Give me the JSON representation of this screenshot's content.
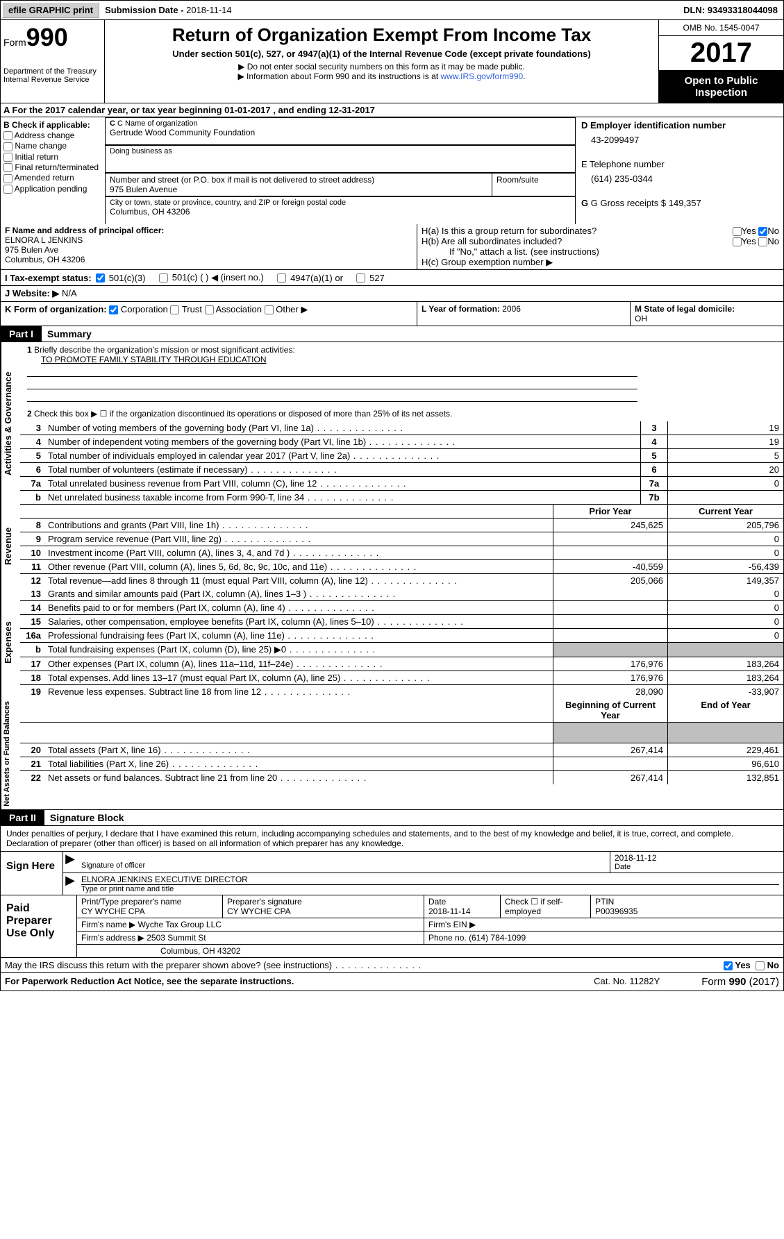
{
  "topbar": {
    "efile": "efile GRAPHIC print",
    "submission_label": "Submission Date - ",
    "submission_date": "2018-11-14",
    "dln_label": "DLN: ",
    "dln": "93493318044098"
  },
  "header": {
    "form_label": "Form",
    "form_number": "990",
    "dept": "Department of the Treasury",
    "irs": "Internal Revenue Service",
    "title": "Return of Organization Exempt From Income Tax",
    "subtitle": "Under section 501(c), 527, or 4947(a)(1) of the Internal Revenue Code (except private foundations)",
    "note1": "▶ Do not enter social security numbers on this form as it may be made public.",
    "note2_pre": "▶ Information about Form 990 and its instructions is at ",
    "note2_link": "www.IRS.gov/form990",
    "omb": "OMB No. 1545-0047",
    "year": "2017",
    "open": "Open to Public Inspection"
  },
  "section_a": "A  For the 2017 calendar year, or tax year beginning 01-01-2017    , and ending 12-31-2017",
  "section_b": {
    "check_label": "B Check if applicable:",
    "options": [
      "Address change",
      "Name change",
      "Initial return",
      "Final return/terminated",
      "Amended return",
      "Application pending"
    ],
    "name_lbl": "C Name of organization",
    "name_val": "Gertrude Wood Community Foundation",
    "dba_lbl": "Doing business as",
    "addr_lbl": "Number and street (or P.O. box if mail is not delivered to street address)",
    "room_lbl": "Room/suite",
    "addr_val": "975 Bulen Avenue",
    "city_lbl": "City or town, state or province, country, and ZIP or foreign postal code",
    "city_val": "Columbus, OH  43206",
    "ein_lbl": "D Employer identification number",
    "ein_val": "43-2099497",
    "tel_lbl": "E Telephone number",
    "tel_val": "(614) 235-0344",
    "gross_lbl": "G Gross receipts $ ",
    "gross_val": "149,357"
  },
  "section_f": {
    "lbl": "F Name and address of principal officer:",
    "name": "ELNORA L JENKINS",
    "addr1": "975 Bulen Ave",
    "addr2": "Columbus, OH  43206",
    "ha": "H(a)  Is this a group return for subordinates?",
    "hb": "H(b)  Are all subordinates included?",
    "hb_note": "If \"No,\" attach a list. (see instructions)",
    "hc": "H(c)  Group exemption number ▶",
    "yes": "Yes",
    "no": "No"
  },
  "section_i": {
    "lbl": "I  Tax-exempt status:",
    "o1": "501(c)(3)",
    "o2": "501(c) (   ) ◀ (insert no.)",
    "o3": "4947(a)(1) or",
    "o4": "527"
  },
  "section_j": {
    "lbl": "J  Website: ▶",
    "val": "N/A"
  },
  "section_k": {
    "lbl": "K Form of organization:",
    "o1": "Corporation",
    "o2": "Trust",
    "o3": "Association",
    "o4": "Other ▶",
    "l_lbl": "L Year of formation: ",
    "l_val": "2006",
    "m_lbl": "M State of legal domicile: ",
    "m_val": "OH"
  },
  "part1": {
    "tag": "Part I",
    "title": "Summary"
  },
  "summary": {
    "q1": "Briefly describe the organization's mission or most significant activities:",
    "mission": "TO PROMOTE FAMILY STABILITY THROUGH EDUCATION",
    "q2": "Check this box ▶ ☐  if the organization discontinued its operations or disposed of more than 25% of its net assets.",
    "rows_gov": [
      {
        "n": "3",
        "d": "Number of voting members of the governing body (Part VI, line 1a)",
        "c": "3",
        "v": "19"
      },
      {
        "n": "4",
        "d": "Number of independent voting members of the governing body (Part VI, line 1b)",
        "c": "4",
        "v": "19"
      },
      {
        "n": "5",
        "d": "Total number of individuals employed in calendar year 2017 (Part V, line 2a)",
        "c": "5",
        "v": "5"
      },
      {
        "n": "6",
        "d": "Total number of volunteers (estimate if necessary)",
        "c": "6",
        "v": "20"
      },
      {
        "n": "7a",
        "d": "Total unrelated business revenue from Part VIII, column (C), line 12",
        "c": "7a",
        "v": "0"
      },
      {
        "n": "b",
        "d": "Net unrelated business taxable income from Form 990-T, line 34",
        "c": "7b",
        "v": ""
      }
    ],
    "prior_hdr": "Prior Year",
    "curr_hdr": "Current Year",
    "rows_rev": [
      {
        "n": "8",
        "d": "Contributions and grants (Part VIII, line 1h)",
        "p": "245,625",
        "c": "205,796"
      },
      {
        "n": "9",
        "d": "Program service revenue (Part VIII, line 2g)",
        "p": "",
        "c": "0"
      },
      {
        "n": "10",
        "d": "Investment income (Part VIII, column (A), lines 3, 4, and 7d )",
        "p": "",
        "c": "0"
      },
      {
        "n": "11",
        "d": "Other revenue (Part VIII, column (A), lines 5, 6d, 8c, 9c, 10c, and 11e)",
        "p": "-40,559",
        "c": "-56,439"
      },
      {
        "n": "12",
        "d": "Total revenue—add lines 8 through 11 (must equal Part VIII, column (A), line 12)",
        "p": "205,066",
        "c": "149,357"
      }
    ],
    "rows_exp": [
      {
        "n": "13",
        "d": "Grants and similar amounts paid (Part IX, column (A), lines 1–3 )",
        "p": "",
        "c": "0"
      },
      {
        "n": "14",
        "d": "Benefits paid to or for members (Part IX, column (A), line 4)",
        "p": "",
        "c": "0"
      },
      {
        "n": "15",
        "d": "Salaries, other compensation, employee benefits (Part IX, column (A), lines 5–10)",
        "p": "",
        "c": "0"
      },
      {
        "n": "16a",
        "d": "Professional fundraising fees (Part IX, column (A), line 11e)",
        "p": "",
        "c": "0"
      },
      {
        "n": "b",
        "d": "Total fundraising expenses (Part IX, column (D), line 25) ▶0",
        "p": "grey",
        "c": "grey"
      },
      {
        "n": "17",
        "d": "Other expenses (Part IX, column (A), lines 11a–11d, 11f–24e)",
        "p": "176,976",
        "c": "183,264"
      },
      {
        "n": "18",
        "d": "Total expenses. Add lines 13–17 (must equal Part IX, column (A), line 25)",
        "p": "176,976",
        "c": "183,264"
      },
      {
        "n": "19",
        "d": "Revenue less expenses. Subtract line 18 from line 12",
        "p": "28,090",
        "c": "-33,907"
      }
    ],
    "beg_hdr": "Beginning of Current Year",
    "end_hdr": "End of Year",
    "rows_net": [
      {
        "n": "20",
        "d": "Total assets (Part X, line 16)",
        "p": "267,414",
        "c": "229,461"
      },
      {
        "n": "21",
        "d": "Total liabilities (Part X, line 26)",
        "p": "",
        "c": "96,610"
      },
      {
        "n": "22",
        "d": "Net assets or fund balances. Subtract line 21 from line 20",
        "p": "267,414",
        "c": "132,851"
      }
    ],
    "side_gov": "Activities & Governance",
    "side_rev": "Revenue",
    "side_exp": "Expenses",
    "side_net": "Net Assets or Fund Balances"
  },
  "part2": {
    "tag": "Part II",
    "title": "Signature Block"
  },
  "sig_declaration": "Under penalties of perjury, I declare that I have examined this return, including accompanying schedules and statements, and to the best of my knowledge and belief, it is true, correct, and complete. Declaration of preparer (other than officer) is based on all information of which preparer has any knowledge.",
  "sign": {
    "lbl": "Sign Here",
    "sig_lbl": "Signature of officer",
    "date_lbl": "Date",
    "date_val": "2018-11-12",
    "name_val": "ELNORA JENKINS EXECUTIVE DIRECTOR",
    "name_lbl": "Type or print name and title"
  },
  "prep": {
    "lbl": "Paid Preparer Use Only",
    "r1": {
      "c1_lbl": "Print/Type preparer's name",
      "c1": "CY WYCHE CPA",
      "c2_lbl": "Preparer's signature",
      "c2": "CY WYCHE CPA",
      "c3_lbl": "Date",
      "c3": "2018-11-14",
      "c4": "Check ☐ if self-employed",
      "c5_lbl": "PTIN",
      "c5": "P00396935"
    },
    "r2": {
      "lbl": "Firm's name      ▶",
      "val": "Wyche Tax Group LLC",
      "ein": "Firm's EIN ▶"
    },
    "r3": {
      "lbl": "Firm's address ▶",
      "val": "2503 Summit St",
      "phone_lbl": "Phone no.",
      "phone": "(614) 784-1099"
    },
    "r4": {
      "city": "Columbus, OH  43202"
    }
  },
  "discuss": "May the IRS discuss this return with the preparer shown above? (see instructions)",
  "footer": {
    "pra": "For Paperwork Reduction Act Notice, see the separate instructions.",
    "cat": "Cat. No. 11282Y",
    "form": "Form 990 (2017)"
  }
}
